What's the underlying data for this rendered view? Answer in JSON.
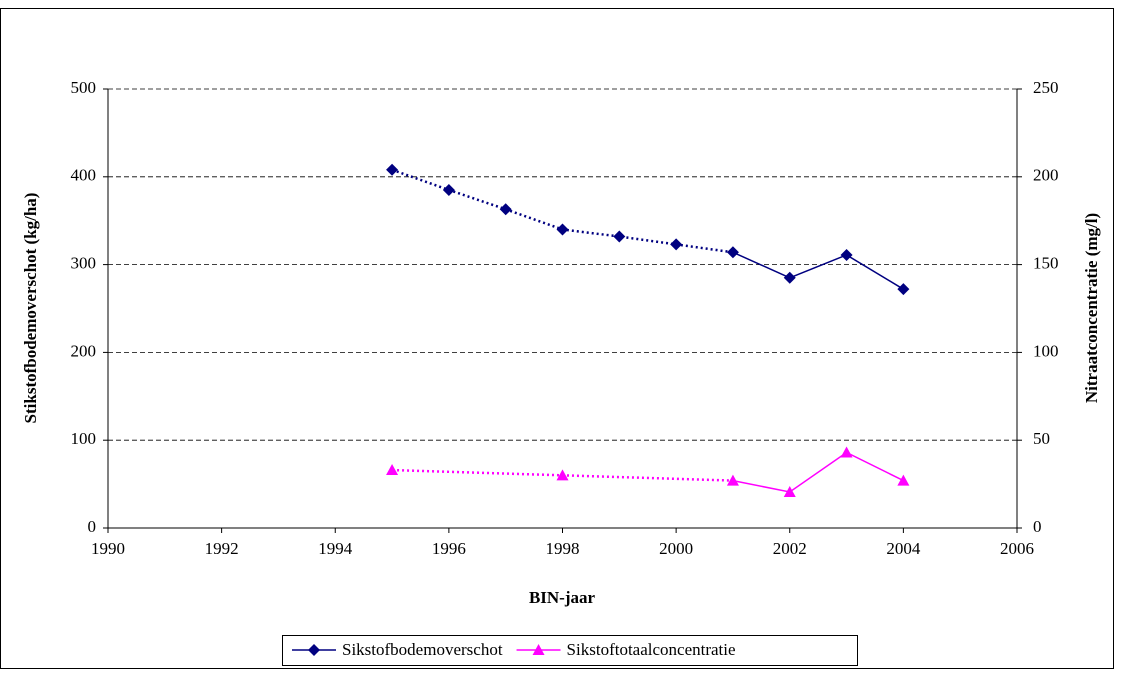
{
  "chart_data": {
    "type": "line",
    "x_label": "BIN-jaar",
    "y_label": "Stikstofbodemoverschot (kg/ha)",
    "y2_label": "Nitraatconcentratie (mg/l)",
    "xlim": [
      1990,
      2006
    ],
    "xticks": [
      1990,
      1992,
      1994,
      1996,
      1998,
      2000,
      2002,
      2004,
      2006
    ],
    "ylim": [
      0,
      500
    ],
    "yticks": [
      0,
      100,
      200,
      300,
      400,
      500
    ],
    "y2lim": [
      0,
      250
    ],
    "y2ticks": [
      0,
      50,
      100,
      150,
      200,
      250
    ],
    "grid": true,
    "legend": "bottom",
    "series": [
      {
        "name": "Sikstofbodemoverschot",
        "color": "#000080",
        "marker": "diamond",
        "dash_until": 2001,
        "x": [
          1995,
          1996,
          1997,
          1998,
          1999,
          2000,
          2001,
          2002,
          2003,
          2004
        ],
        "values": [
          408,
          385,
          363,
          340,
          332,
          323,
          314,
          285,
          311,
          272
        ]
      },
      {
        "name": "Sikstoftotaalconcentratie",
        "color": "#ff00ff",
        "marker": "triangle",
        "dash_until": 2001,
        "axis": "y2",
        "x": [
          1995,
          1998,
          2001,
          2002,
          2003,
          2004
        ],
        "values": [
          33,
          30,
          27,
          20.5,
          43,
          27
        ]
      }
    ]
  }
}
